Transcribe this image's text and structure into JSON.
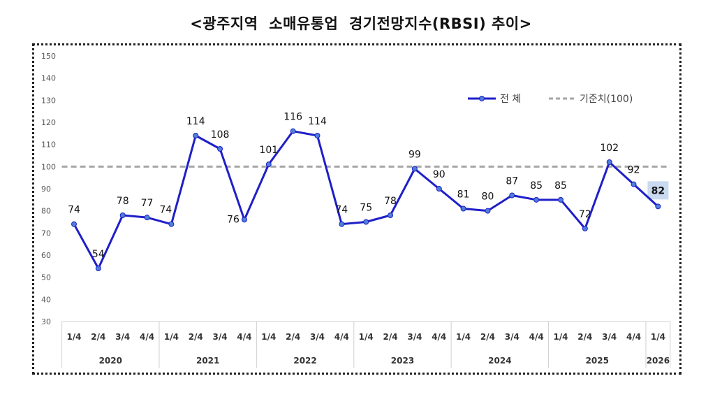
{
  "chart_data": {
    "type": "line",
    "title": "<광주지역  소매유통업  경기전망지수(RBSI) 추이>",
    "xlabel": "",
    "ylabel": "",
    "ylim": [
      30,
      150
    ],
    "yticks": [
      30,
      40,
      50,
      60,
      70,
      80,
      90,
      100,
      110,
      120,
      130,
      140,
      150
    ],
    "categories": [
      "1/4",
      "2/4",
      "3/4",
      "4/4",
      "1/4",
      "2/4",
      "3/4",
      "4/4",
      "1/4",
      "2/4",
      "3/4",
      "4/4",
      "1/4",
      "2/4",
      "3/4",
      "4/4",
      "1/4",
      "2/4",
      "3/4",
      "4/4",
      "1/4",
      "2/4",
      "3/4",
      "4/4",
      "1/4"
    ],
    "years": [
      {
        "label": "2020",
        "count": 4
      },
      {
        "label": "2021",
        "count": 4
      },
      {
        "label": "2022",
        "count": 4
      },
      {
        "label": "2023",
        "count": 4
      },
      {
        "label": "2024",
        "count": 4
      },
      {
        "label": "2025",
        "count": 4
      },
      {
        "label": "2026",
        "count": 1
      }
    ],
    "series": [
      {
        "name": "전 체",
        "color": "#1f1fc8",
        "values": [
          74,
          54,
          78,
          77,
          74,
          114,
          108,
          76,
          101,
          116,
          114,
          74,
          75,
          78,
          99,
          90,
          81,
          80,
          87,
          85,
          85,
          72,
          102,
          92,
          82
        ]
      }
    ],
    "reference": {
      "name": "기준치(100)",
      "value": 100,
      "color": "#a6a6a6"
    },
    "highlight_index": 24,
    "highlight_color": "#c9daf0"
  }
}
